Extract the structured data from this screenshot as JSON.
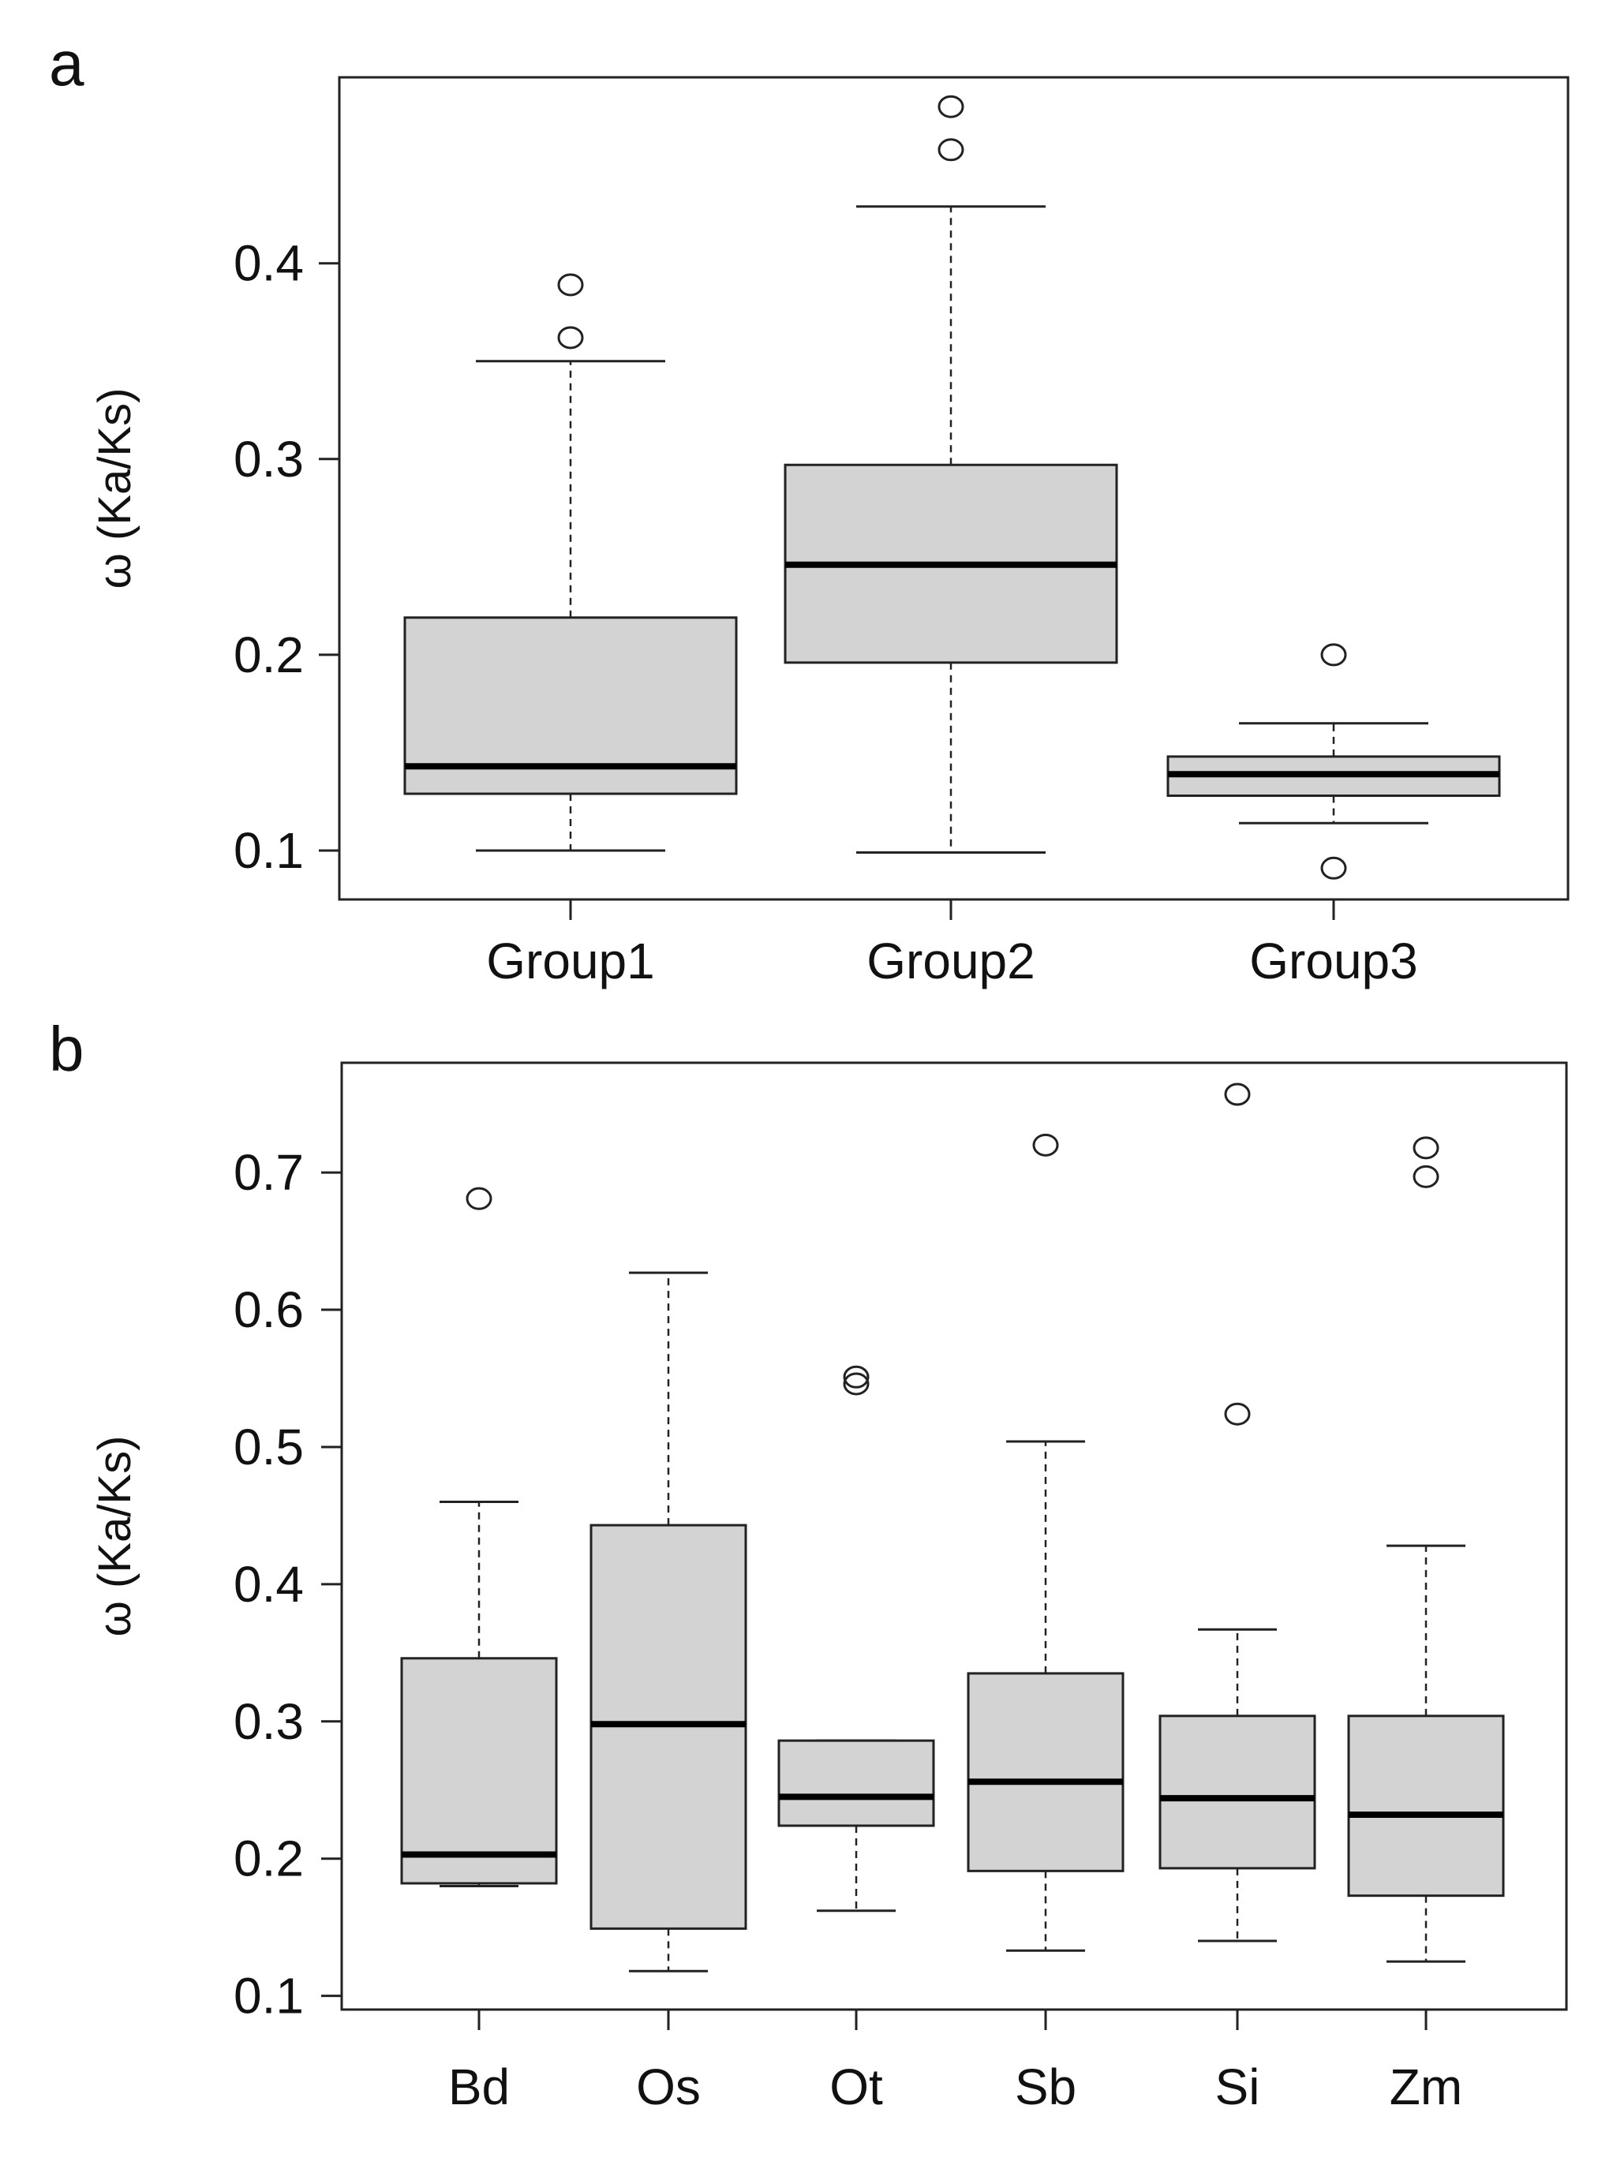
{
  "chart_data": [
    {
      "panel_label": "a",
      "type": "boxplot",
      "ylabel": "ω (Ka/Ks)",
      "xlabel": "",
      "ylim": [
        0.075,
        0.495
      ],
      "yticks": [
        0.1,
        0.2,
        0.3,
        0.4
      ],
      "ytick_labels": [
        "0.1",
        "0.2",
        "0.3",
        "0.4"
      ],
      "grid": false,
      "categories": [
        "Group1",
        "Group2",
        "Group3"
      ],
      "boxes": [
        {
          "name": "Group1",
          "whisker_low": 0.1,
          "q1": 0.129,
          "median": 0.143,
          "q3": 0.219,
          "whisker_high": 0.35,
          "outliers": [
            0.362,
            0.389
          ]
        },
        {
          "name": "Group2",
          "whisker_low": 0.099,
          "q1": 0.196,
          "median": 0.246,
          "q3": 0.297,
          "whisker_high": 0.429,
          "outliers": [
            0.458,
            0.48
          ]
        },
        {
          "name": "Group3",
          "whisker_low": 0.114,
          "q1": 0.128,
          "median": 0.139,
          "q3": 0.148,
          "whisker_high": 0.165,
          "outliers": [
            0.2,
            0.091
          ]
        }
      ]
    },
    {
      "panel_label": "b",
      "type": "boxplot",
      "ylabel": "ω (Ka/Ks)",
      "xlabel": "",
      "ylim": [
        0.09,
        0.78
      ],
      "yticks": [
        0.1,
        0.2,
        0.3,
        0.4,
        0.5,
        0.6,
        0.7
      ],
      "ytick_labels": [
        "0.1",
        "0.2",
        "0.3",
        "0.4",
        "0.5",
        "0.6",
        "0.7"
      ],
      "grid": false,
      "categories": [
        "Bd",
        "Os",
        "Ot",
        "Sb",
        "Si",
        "Zm"
      ],
      "boxes": [
        {
          "name": "Bd",
          "whisker_low": 0.18,
          "q1": 0.182,
          "median": 0.203,
          "q3": 0.346,
          "whisker_high": 0.46,
          "outliers": [
            0.681
          ]
        },
        {
          "name": "Os",
          "whisker_low": 0.118,
          "q1": 0.149,
          "median": 0.298,
          "q3": 0.443,
          "whisker_high": 0.627,
          "outliers": []
        },
        {
          "name": "Ot",
          "whisker_low": 0.162,
          "q1": 0.224,
          "median": 0.245,
          "q3": 0.286,
          "whisker_high": 0.286,
          "outliers": [
            0.546,
            0.551
          ]
        },
        {
          "name": "Sb",
          "whisker_low": 0.133,
          "q1": 0.191,
          "median": 0.256,
          "q3": 0.335,
          "whisker_high": 0.504,
          "outliers": [
            0.72
          ]
        },
        {
          "name": "Si",
          "whisker_low": 0.14,
          "q1": 0.193,
          "median": 0.244,
          "q3": 0.304,
          "whisker_high": 0.367,
          "outliers": [
            0.524,
            0.757
          ]
        },
        {
          "name": "Zm",
          "whisker_low": 0.125,
          "q1": 0.173,
          "median": 0.232,
          "q3": 0.304,
          "whisker_high": 0.428,
          "outliers": [
            0.697,
            0.718
          ]
        }
      ]
    }
  ]
}
